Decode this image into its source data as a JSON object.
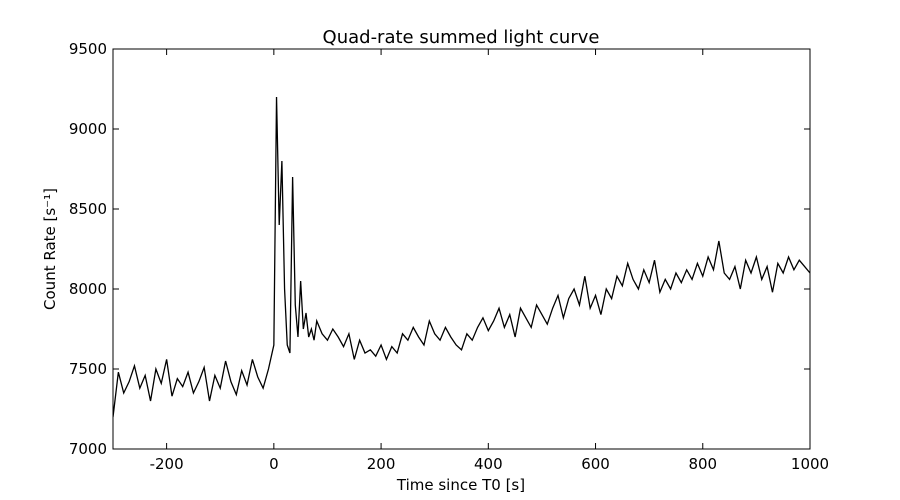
{
  "chart_data": {
    "type": "line",
    "title": "Quad-rate summed light curve",
    "xlabel": "Time since T0 [s]",
    "ylabel": "Count Rate [s⁻¹]",
    "x": [
      -300,
      -290,
      -280,
      -270,
      -260,
      -250,
      -240,
      -230,
      -220,
      -210,
      -200,
      -190,
      -180,
      -170,
      -160,
      -150,
      -140,
      -130,
      -120,
      -110,
      -100,
      -90,
      -80,
      -70,
      -60,
      -50,
      -40,
      -30,
      -20,
      -10,
      0,
      5,
      10,
      15,
      20,
      25,
      30,
      35,
      40,
      45,
      50,
      55,
      60,
      65,
      70,
      75,
      80,
      90,
      100,
      110,
      120,
      130,
      140,
      150,
      160,
      170,
      180,
      190,
      200,
      210,
      220,
      230,
      240,
      250,
      260,
      270,
      280,
      290,
      300,
      310,
      320,
      330,
      340,
      350,
      360,
      370,
      380,
      390,
      400,
      410,
      420,
      430,
      440,
      450,
      460,
      470,
      480,
      490,
      500,
      510,
      520,
      530,
      540,
      550,
      560,
      570,
      580,
      590,
      600,
      610,
      620,
      630,
      640,
      650,
      660,
      670,
      680,
      690,
      700,
      710,
      720,
      730,
      740,
      750,
      760,
      770,
      780,
      790,
      800,
      810,
      820,
      830,
      840,
      850,
      860,
      870,
      880,
      890,
      900,
      910,
      920,
      930,
      940,
      950,
      960,
      970,
      980,
      990,
      1000
    ],
    "series": [
      {
        "name": "light curve",
        "color": "#000000",
        "values": [
          7200,
          7480,
          7350,
          7420,
          7520,
          7380,
          7460,
          7300,
          7500,
          7410,
          7560,
          7330,
          7440,
          7390,
          7480,
          7350,
          7420,
          7510,
          7300,
          7460,
          7380,
          7550,
          7420,
          7340,
          7490,
          7400,
          7560,
          7450,
          7380,
          7500,
          7650,
          9200,
          8400,
          8800,
          8000,
          7650,
          7600,
          8700,
          7900,
          7700,
          8050,
          7750,
          7850,
          7700,
          7750,
          7680,
          7800,
          7720,
          7680,
          7750,
          7700,
          7640,
          7720,
          7560,
          7680,
          7600,
          7620,
          7580,
          7650,
          7560,
          7640,
          7600,
          7720,
          7680,
          7760,
          7700,
          7650,
          7800,
          7720,
          7680,
          7760,
          7700,
          7650,
          7620,
          7720,
          7680,
          7760,
          7820,
          7740,
          7800,
          7880,
          7760,
          7840,
          7700,
          7880,
          7820,
          7760,
          7900,
          7840,
          7780,
          7880,
          7960,
          7820,
          7940,
          8000,
          7900,
          8080,
          7880,
          7960,
          7840,
          8000,
          7940,
          8080,
          8020,
          8160,
          8060,
          8000,
          8120,
          8040,
          8180,
          7980,
          8060,
          8000,
          8100,
          8040,
          8120,
          8060,
          8160,
          8080,
          8200,
          8120,
          8300,
          8100,
          8060,
          8140,
          8000,
          8180,
          8100,
          8200,
          8060,
          8140,
          7980,
          8160,
          8100,
          8200,
          8120,
          8180,
          8140,
          8100
        ]
      }
    ],
    "xlim": [
      -300,
      1000
    ],
    "ylim": [
      7000,
      9500
    ],
    "xticks": [
      -200,
      0,
      200,
      400,
      600,
      800,
      1000
    ],
    "yticks": [
      7000,
      7500,
      8000,
      8500,
      9000,
      9500
    ],
    "grid": false
  }
}
